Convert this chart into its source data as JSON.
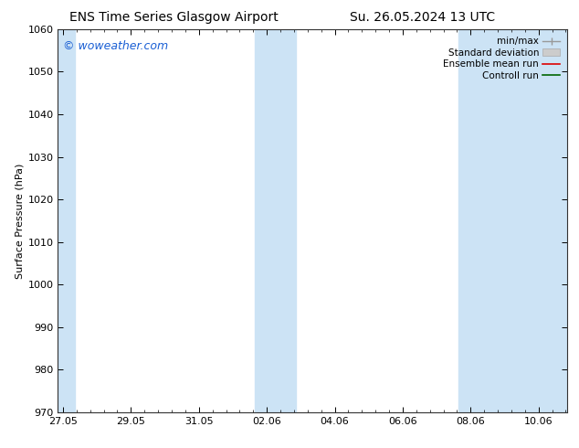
{
  "title_left": "ENS Time Series Glasgow Airport",
  "title_right": "Su. 26.05.2024 13 UTC",
  "ylabel": "Surface Pressure (hPa)",
  "ylim": [
    970,
    1060
  ],
  "yticks": [
    970,
    980,
    990,
    1000,
    1010,
    1020,
    1030,
    1040,
    1050,
    1060
  ],
  "xtick_labels": [
    "27.05",
    "29.05",
    "31.05",
    "02.06",
    "04.06",
    "06.06",
    "08.06",
    "10.06"
  ],
  "xtick_positions": [
    0,
    2,
    4,
    6,
    8,
    10,
    12,
    14
  ],
  "xmin": -0.15,
  "xmax": 14.85,
  "shaded_bands": [
    {
      "x_start": -0.15,
      "x_end": 0.35
    },
    {
      "x_start": 5.65,
      "x_end": 6.85
    },
    {
      "x_start": 11.65,
      "x_end": 14.85
    }
  ],
  "shaded_color": "#cce3f5",
  "watermark_text": "© woweather.com",
  "watermark_color": "#1a5fd4",
  "watermark_fontsize": 9,
  "legend_labels": [
    "min/max",
    "Standard deviation",
    "Ensemble mean run",
    "Controll run"
  ],
  "legend_colors_line": [
    "#999999",
    "#bbbbbb",
    "#dd0000",
    "#006600"
  ],
  "bg_color": "#ffffff",
  "plot_bg_color": "#ffffff",
  "title_fontsize": 10,
  "axis_label_fontsize": 8,
  "tick_fontsize": 8,
  "legend_fontsize": 7.5
}
